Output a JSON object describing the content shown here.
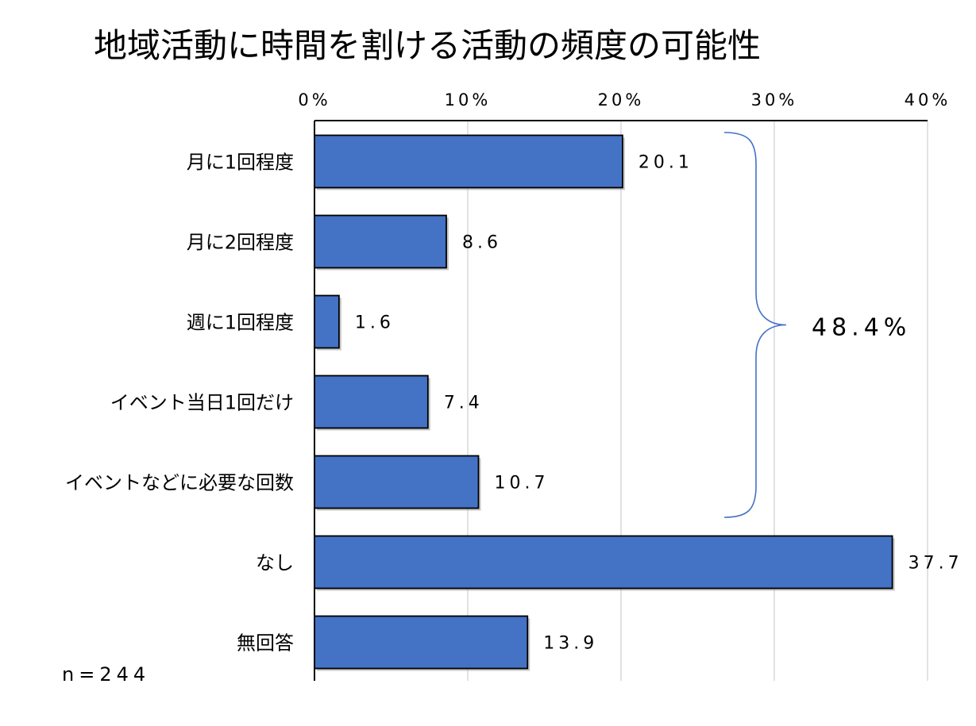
{
  "chart_data": {
    "type": "bar",
    "orientation": "horizontal",
    "title": "地域活動に時間を割ける活動の頻度の可能性",
    "categories": [
      "月に1回程度",
      "月に2回程度",
      "週に1回程度",
      "イベント当日1回だけ",
      "イベントなどに必要な回数",
      "なし",
      "無回答"
    ],
    "values": [
      20.1,
      8.6,
      1.6,
      7.4,
      10.7,
      37.7,
      13.9
    ],
    "value_labels": [
      "20.1",
      "8.6",
      "1.6",
      "7.4",
      "10.7",
      "37.7",
      "13.9"
    ],
    "xlim": [
      0,
      40
    ],
    "xticks": [
      0,
      10,
      20,
      30,
      40
    ],
    "xtick_labels": [
      "0%",
      "10%",
      "20%",
      "30%",
      "40%"
    ],
    "x_axis_position": "top",
    "grid": true,
    "bar_color": "#4472C4",
    "bracket": {
      "label": "48.4%",
      "covers_categories": [
        "月に1回程度",
        "月に2回程度",
        "週に1回程度",
        "イベント当日1回だけ",
        "イベントなどに必要な回数"
      ]
    },
    "note": "n=244"
  }
}
